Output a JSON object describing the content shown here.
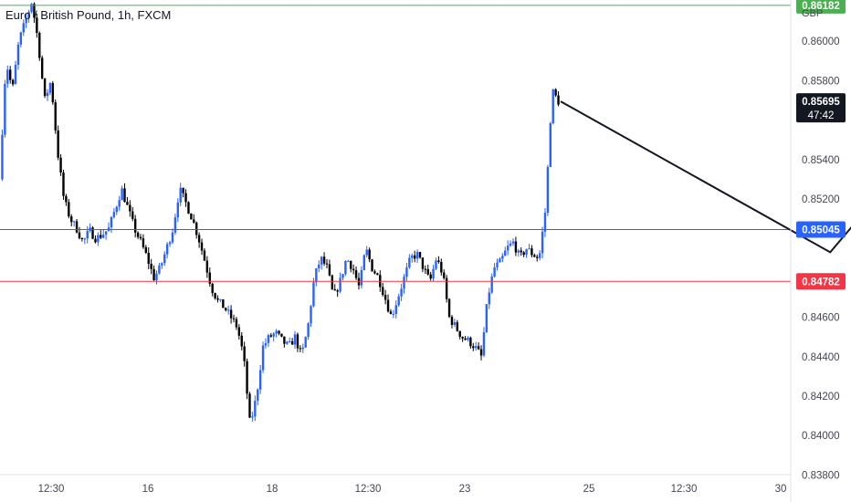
{
  "header": {
    "title": "Euro / British Pound, 1h, FXCM"
  },
  "currency": "GBP",
  "chart_data": {
    "type": "candlestick",
    "title": "Euro / British Pound, 1h, FXCM",
    "ylim": [
      0.8372,
      0.8636
    ],
    "y_ticks": [
      "0.86000",
      "0.85800",
      "0.85400",
      "0.85200",
      "0.84600",
      "0.84400",
      "0.84200",
      "0.84000",
      "0.83800"
    ],
    "x_ticks": [
      "12:30",
      "16",
      "18",
      "12:30",
      "23",
      "25",
      "12:30",
      "30"
    ],
    "levels": [
      {
        "value": 0.86182,
        "label": "0.86182",
        "color": "#4caf50"
      },
      {
        "value": 0.85045,
        "label": "0.85045",
        "color": "#2962ff"
      },
      {
        "value": 0.84782,
        "label": "0.84782",
        "color": "#f23645"
      }
    ],
    "last_price": {
      "value": "0.85695",
      "countdown": "47:42"
    },
    "series_path": [
      0.853,
      0.859,
      0.8575,
      0.86,
      0.861,
      0.862,
      0.86,
      0.857,
      0.858,
      0.8545,
      0.852,
      0.851,
      0.8505,
      0.8498,
      0.8504,
      0.85,
      0.8502,
      0.8505,
      0.8515,
      0.8525,
      0.8515,
      0.8505,
      0.8498,
      0.849,
      0.848,
      0.8485,
      0.8495,
      0.8505,
      0.8525,
      0.8518,
      0.851,
      0.85,
      0.8488,
      0.8475,
      0.8468,
      0.8465,
      0.846,
      0.8455,
      0.844,
      0.8405,
      0.842,
      0.8445,
      0.845,
      0.8452,
      0.8448,
      0.8445,
      0.845,
      0.844,
      0.8455,
      0.848,
      0.849,
      0.8485,
      0.847,
      0.8478,
      0.849,
      0.8485,
      0.8475,
      0.8495,
      0.8485,
      0.848,
      0.847,
      0.846,
      0.847,
      0.848,
      0.849,
      0.8492,
      0.8485,
      0.8478,
      0.849,
      0.8482,
      0.846,
      0.8455,
      0.845,
      0.8448,
      0.8445,
      0.844,
      0.847,
      0.8485,
      0.8488,
      0.8495,
      0.8498,
      0.849,
      0.8495,
      0.8492,
      0.849,
      0.8515,
      0.8575,
      0.85695
    ],
    "projection": [
      [
        0.85695,
        0
      ],
      [
        0.8493,
        12
      ],
      [
        0.8627,
        22
      ]
    ]
  }
}
